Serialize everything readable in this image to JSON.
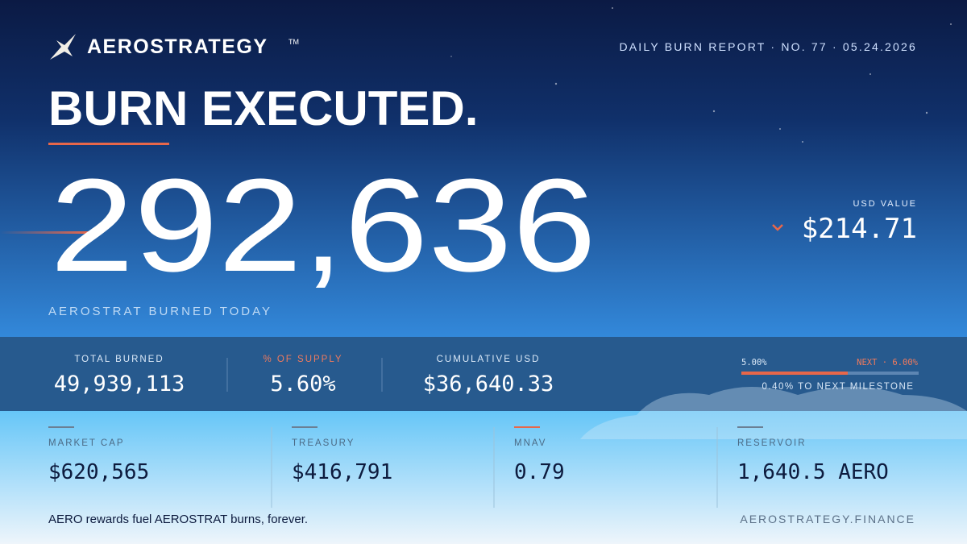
{
  "header": {
    "brand": "AEROSTRATEGY",
    "trademark": "TM",
    "report": "DAILY BURN REPORT · NO. 77 · 05.24.2026"
  },
  "hero": {
    "title": "BURN EXECUTED.",
    "amount": "292,636",
    "caption": "AEROSTRAT BURNED TODAY",
    "usd_label": "USD VALUE",
    "usd_value": "$214.71"
  },
  "stats": [
    {
      "label": "TOTAL BURNED",
      "value": "49,939,113"
    },
    {
      "label": "% OF SUPPLY",
      "value": "5.60%"
    },
    {
      "label": "CUMULATIVE USD",
      "value": "$36,640.33"
    }
  ],
  "progress": {
    "min": {
      "value": 5,
      "label": "5.00%"
    },
    "max": {
      "value": 6,
      "label": "NEXT · 6.00%"
    },
    "current": 5.6,
    "note": "0.40% TO NEXT MILESTONE"
  },
  "metrics": [
    {
      "label": "MARKET CAP",
      "value": "$620,565"
    },
    {
      "label": "TREASURY",
      "value": "$416,791"
    },
    {
      "label": "MNAV",
      "value": "0.79"
    },
    {
      "label": "RESERVOIR",
      "value": "1,640.5 AERO"
    }
  ],
  "footer": {
    "tagline": "AERO rewards fuel AEROSTRAT burns, forever.",
    "site": "AEROSTRATEGY.FINANCE"
  }
}
